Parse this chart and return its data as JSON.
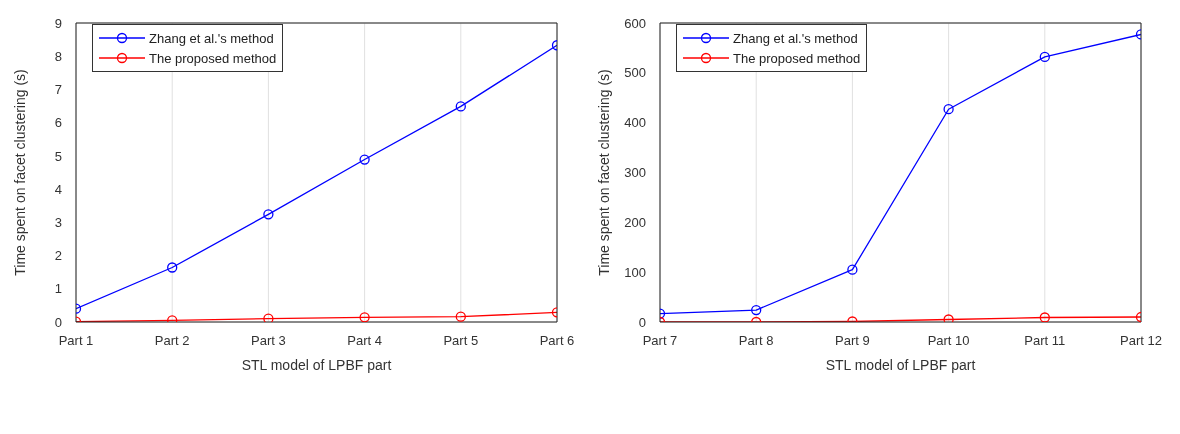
{
  "chart_data": [
    {
      "type": "line",
      "xlabel": "STL model of LPBF part",
      "ylabel": "Time spent on facet clustering (s)",
      "categories": [
        "Part 1",
        "Part 2",
        "Part 3",
        "Part 4",
        "Part 5",
        "Part 6"
      ],
      "series": [
        {
          "name": "Zhang et al.'s method",
          "color": "#0000ff",
          "values": [
            0.4,
            1.64,
            3.24,
            4.89,
            6.49,
            8.33
          ]
        },
        {
          "name": "The proposed method",
          "color": "#ff0000",
          "values": [
            0.01,
            0.05,
            0.1,
            0.14,
            0.16,
            0.29
          ]
        }
      ],
      "ylim": [
        0,
        9
      ],
      "yticks": [
        0,
        1,
        2,
        3,
        4,
        5,
        6,
        7,
        8,
        9
      ],
      "grid": true,
      "legend": "top left",
      "marker": "circle",
      "line_style": "solid"
    },
    {
      "type": "line",
      "xlabel": "STL model of LPBF part",
      "ylabel": "Time spent on facet clustering (s)",
      "categories": [
        "Part 7",
        "Part 8",
        "Part 9",
        "Part 10",
        "Part 11",
        "Part 12"
      ],
      "series": [
        {
          "name": "Zhang et al.'s method",
          "color": "#0000ff",
          "values": [
            17,
            24,
            105,
            427,
            532,
            577
          ]
        },
        {
          "name": "The proposed method",
          "color": "#ff0000",
          "values": [
            0,
            0,
            1,
            5,
            9,
            10
          ]
        }
      ],
      "ylim": [
        0,
        600
      ],
      "yticks": [
        0,
        100,
        200,
        300,
        400,
        500,
        600
      ],
      "grid": true,
      "legend": "top left",
      "marker": "circle",
      "line_style": "solid"
    }
  ]
}
